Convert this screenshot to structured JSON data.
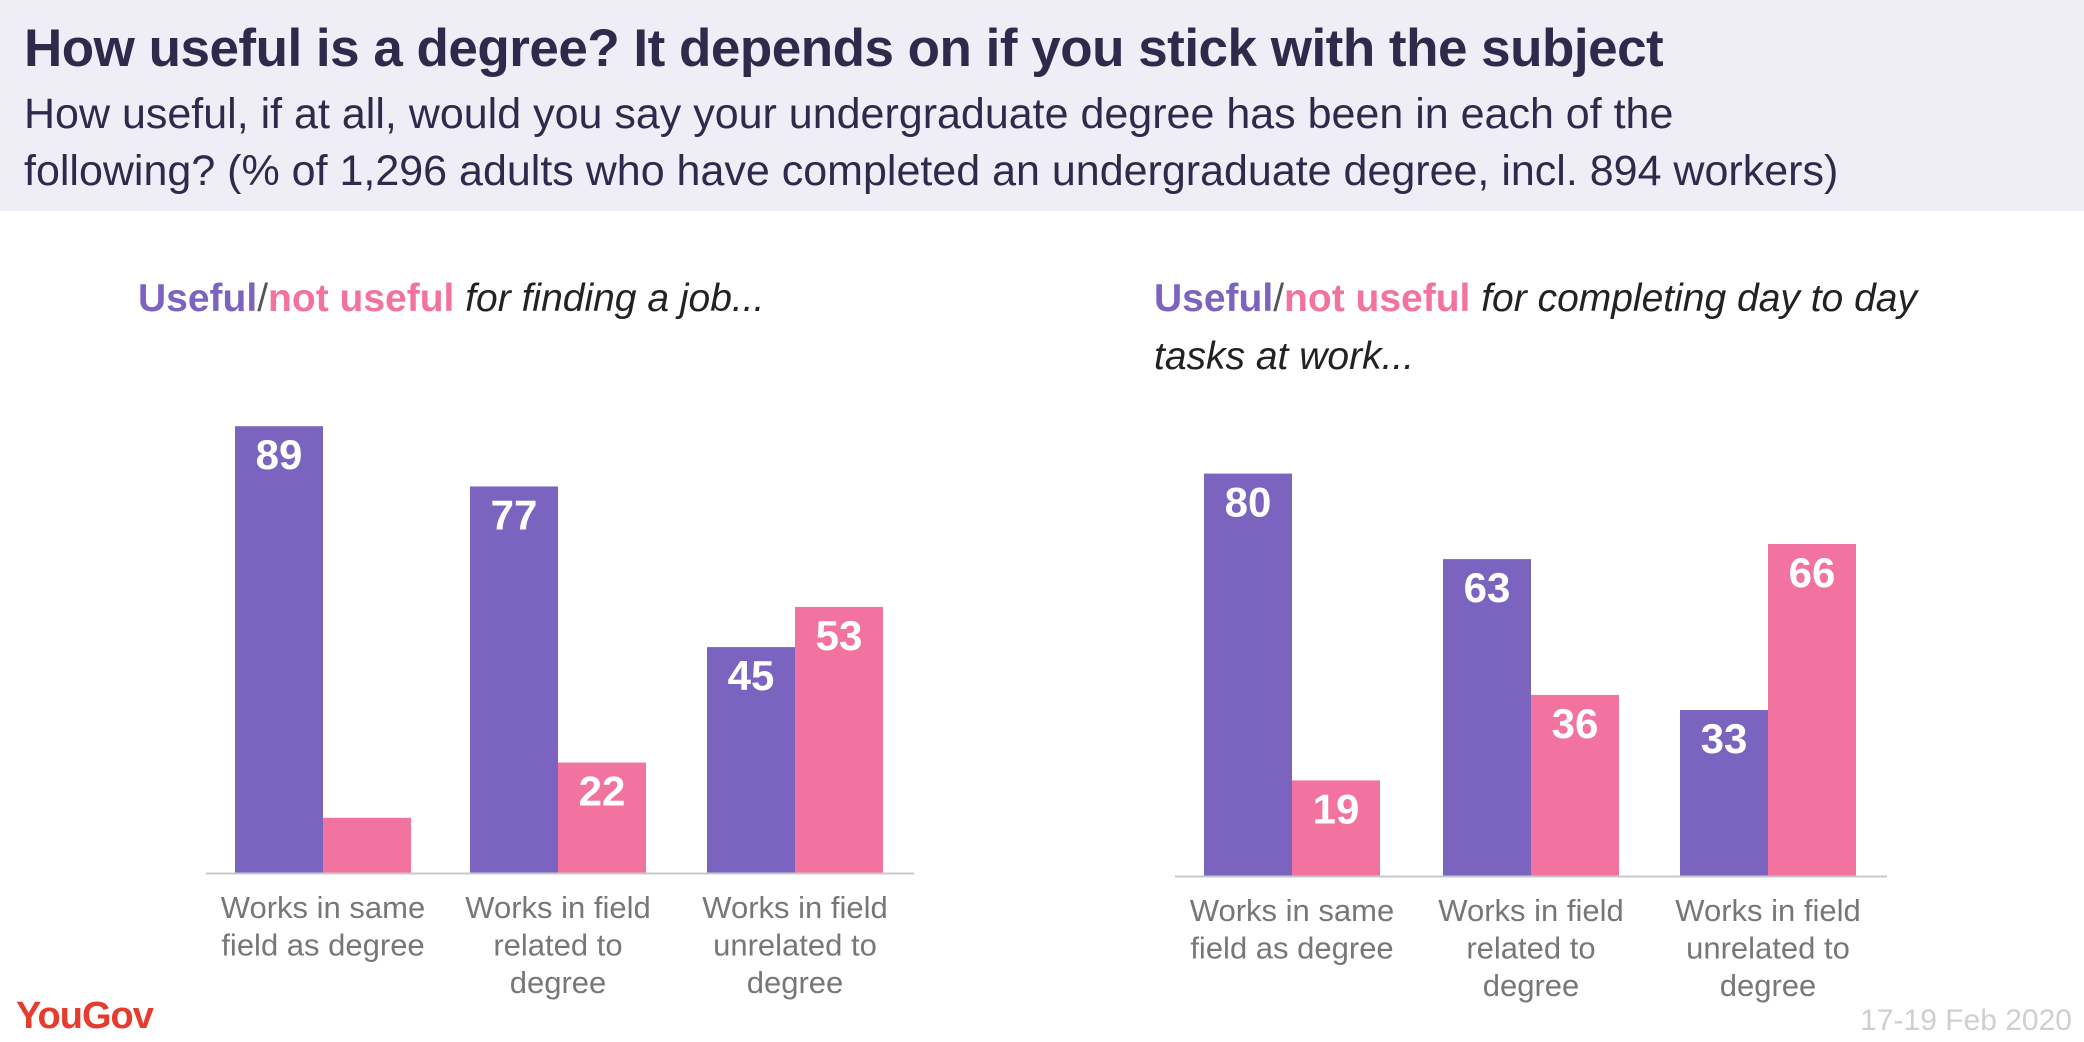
{
  "header": {
    "title": "How useful is a degree? It depends on if you stick with the subject",
    "subtitle_line1": "How useful, if at all, would you say your undergraduate degree has been in each of the",
    "subtitle_line2": "following? (% of 1,296 adults who have completed an undergraduate degree, incl. 894 workers)"
  },
  "footer": {
    "logo": "YouGov",
    "date": "17-19 Feb 2020"
  },
  "colors": {
    "useful": "#7b64c0",
    "not_useful": "#f272a0"
  },
  "chart_data": [
    {
      "type": "bar",
      "title_useful": "Useful",
      "title_sep": "/",
      "title_not_useful": "not useful",
      "title_rest": "for finding a job...",
      "title_rest2": "",
      "categories": [
        [
          "Works in same",
          "field as degree"
        ],
        [
          "Works in field",
          "related to",
          "degree"
        ],
        [
          "Works in field",
          "unrelated to",
          "degree"
        ]
      ],
      "series": [
        {
          "name": "Useful",
          "values": [
            89,
            77,
            45
          ]
        },
        {
          "name": "Not useful",
          "values": [
            11,
            22,
            53
          ]
        }
      ],
      "ylim": [
        0,
        100
      ]
    },
    {
      "type": "bar",
      "title_useful": "Useful",
      "title_sep": "/",
      "title_not_useful": "not useful",
      "title_rest": "for completing day to day",
      "title_rest2": "tasks at work...",
      "categories": [
        [
          "Works in same",
          "field as degree"
        ],
        [
          "Works in field",
          "related to",
          "degree"
        ],
        [
          "Works in field",
          "unrelated to",
          "degree"
        ]
      ],
      "series": [
        {
          "name": "Useful",
          "values": [
            80,
            63,
            33
          ]
        },
        {
          "name": "Not useful",
          "values": [
            19,
            36,
            66
          ]
        }
      ],
      "ylim": [
        0,
        100
      ]
    }
  ]
}
